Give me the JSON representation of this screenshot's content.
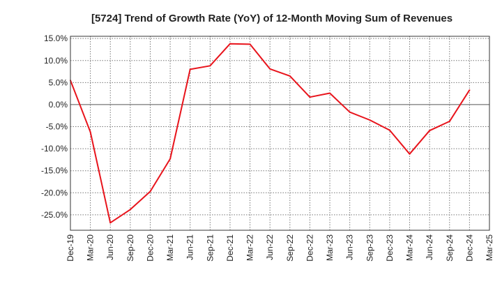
{
  "chart_data": {
    "type": "line",
    "title": "[5724]  Trend of Growth Rate (YoY) of 12-Month Moving Sum of Revenues",
    "xlabel": "",
    "ylabel": "",
    "categories": [
      "Dec-19",
      "Mar-20",
      "Jun-20",
      "Sep-20",
      "Dec-20",
      "Mar-21",
      "Jun-21",
      "Sep-21",
      "Dec-21",
      "Mar-22",
      "Jun-22",
      "Sep-22",
      "Dec-22",
      "Mar-23",
      "Jun-23",
      "Sep-23",
      "Dec-23",
      "Mar-24",
      "Jun-24",
      "Sep-24",
      "Dec-24",
      "Mar-25"
    ],
    "series": [
      {
        "color": "#e8141c",
        "values": [
          5.5,
          -6.2,
          -26.8,
          -23.8,
          -19.7,
          -12.3,
          8.0,
          8.8,
          13.8,
          13.7,
          8.1,
          6.5,
          1.7,
          2.6,
          -1.7,
          -3.5,
          -5.8,
          -11.2,
          -5.9,
          -3.8,
          3.3,
          null
        ]
      }
    ],
    "ylim": [
      -28.5,
      15.5
    ],
    "yticks": [
      15,
      10,
      5,
      0,
      -5,
      -10,
      -15,
      -20,
      -25
    ],
    "ytick_labels": [
      "15.0%",
      "10.0%",
      "5.0%",
      "0.0%",
      "-5.0%",
      "-10.0%",
      "-15.0%",
      "-20.0%",
      "-25.0%"
    ],
    "grid": true,
    "legend": "none"
  }
}
